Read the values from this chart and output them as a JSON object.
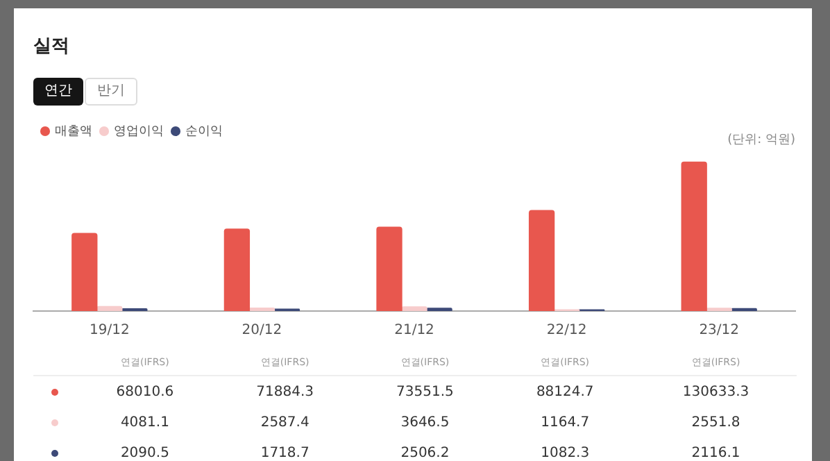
{
  "chart_data": {
    "type": "bar",
    "title": "실적",
    "categories": [
      "19/12",
      "20/12",
      "21/12",
      "22/12",
      "23/12"
    ],
    "series": [
      {
        "name": "매출액",
        "color": "#e8574e",
        "values": [
          68010.6,
          71884.3,
          73551.5,
          88124.7,
          130633.3
        ]
      },
      {
        "name": "영업이익",
        "color": "#f7cccc",
        "values": [
          4081.1,
          2587.4,
          3646.5,
          1164.7,
          2551.8
        ]
      },
      {
        "name": "순이익",
        "color": "#3d4a78",
        "values": [
          2090.5,
          1718.7,
          2506.2,
          1082.3,
          2116.1
        ]
      }
    ],
    "annotations": [
      "연간",
      "반기",
      "(단위: 억원)",
      "연결(IFRS)"
    ],
    "legend": "top left",
    "grid": false,
    "tick_labels": "x",
    "data_labels": true
  }
}
